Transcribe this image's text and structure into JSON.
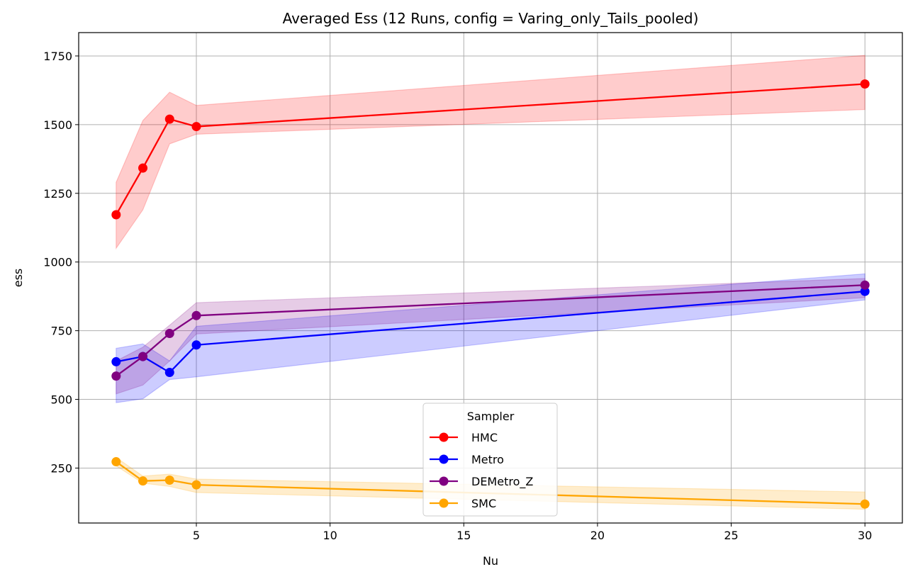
{
  "chart_data": {
    "type": "line",
    "title": "Averaged Ess (12 Runs, config = Varing_only_Tails_pooled)",
    "xlabel": "Nu",
    "ylabel": "ess",
    "x": [
      2,
      3,
      4,
      5,
      30
    ],
    "xlim": [
      0.6,
      31.4
    ],
    "ylim": [
      50,
      1835
    ],
    "xticks": [
      5,
      10,
      15,
      20,
      25,
      30
    ],
    "yticks": [
      250,
      500,
      750,
      1000,
      1250,
      1500,
      1750
    ],
    "grid": true,
    "legend": {
      "title": "Sampler",
      "position": "lower-center"
    },
    "series": [
      {
        "name": "HMC",
        "color": "#ff0000",
        "band_color": "#ff0000",
        "values": [
          1172,
          1342,
          1520,
          1493,
          1648
        ],
        "lower": [
          1050,
          1190,
          1430,
          1465,
          1555
        ],
        "upper": [
          1290,
          1515,
          1618,
          1570,
          1752
        ]
      },
      {
        "name": "Metro",
        "color": "#0000ff",
        "band_color": "#0000ff",
        "values": [
          637,
          656,
          598,
          698,
          893
        ],
        "lower": [
          488,
          502,
          572,
          582,
          862
        ],
        "upper": [
          686,
          702,
          640,
          766,
          957
        ]
      },
      {
        "name": "DEMetro_Z",
        "color": "#800080",
        "band_color": "#800080",
        "values": [
          585,
          656,
          740,
          805,
          916
        ],
        "lower": [
          520,
          552,
          640,
          738,
          870
        ],
        "upper": [
          640,
          690,
          770,
          852,
          940
        ]
      },
      {
        "name": "SMC",
        "color": "#ffa500",
        "band_color": "#ffa500",
        "values": [
          273,
          203,
          206,
          189,
          119
        ],
        "lower": [
          258,
          195,
          183,
          161,
          100
        ],
        "upper": [
          289,
          221,
          228,
          210,
          163
        ]
      }
    ]
  }
}
